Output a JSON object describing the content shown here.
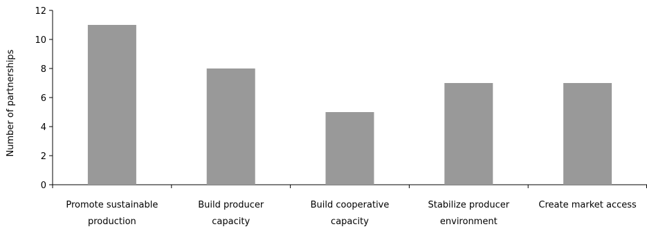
{
  "chart_data": {
    "type": "bar",
    "categories": [
      [
        "Promote sustainable",
        "production"
      ],
      [
        "Build producer",
        "capacity"
      ],
      [
        "Build cooperative",
        "capacity"
      ],
      [
        "Stabilize producer",
        "environment"
      ],
      [
        "Create market access"
      ]
    ],
    "values": [
      11,
      8,
      5,
      7,
      7
    ],
    "title": "",
    "xlabel": "",
    "ylabel": "Number of partnerships",
    "ylim": [
      0,
      12
    ],
    "yticks": [
      0,
      2,
      4,
      6,
      8,
      10,
      12
    ],
    "grid": false,
    "bar_color": "#999999"
  }
}
